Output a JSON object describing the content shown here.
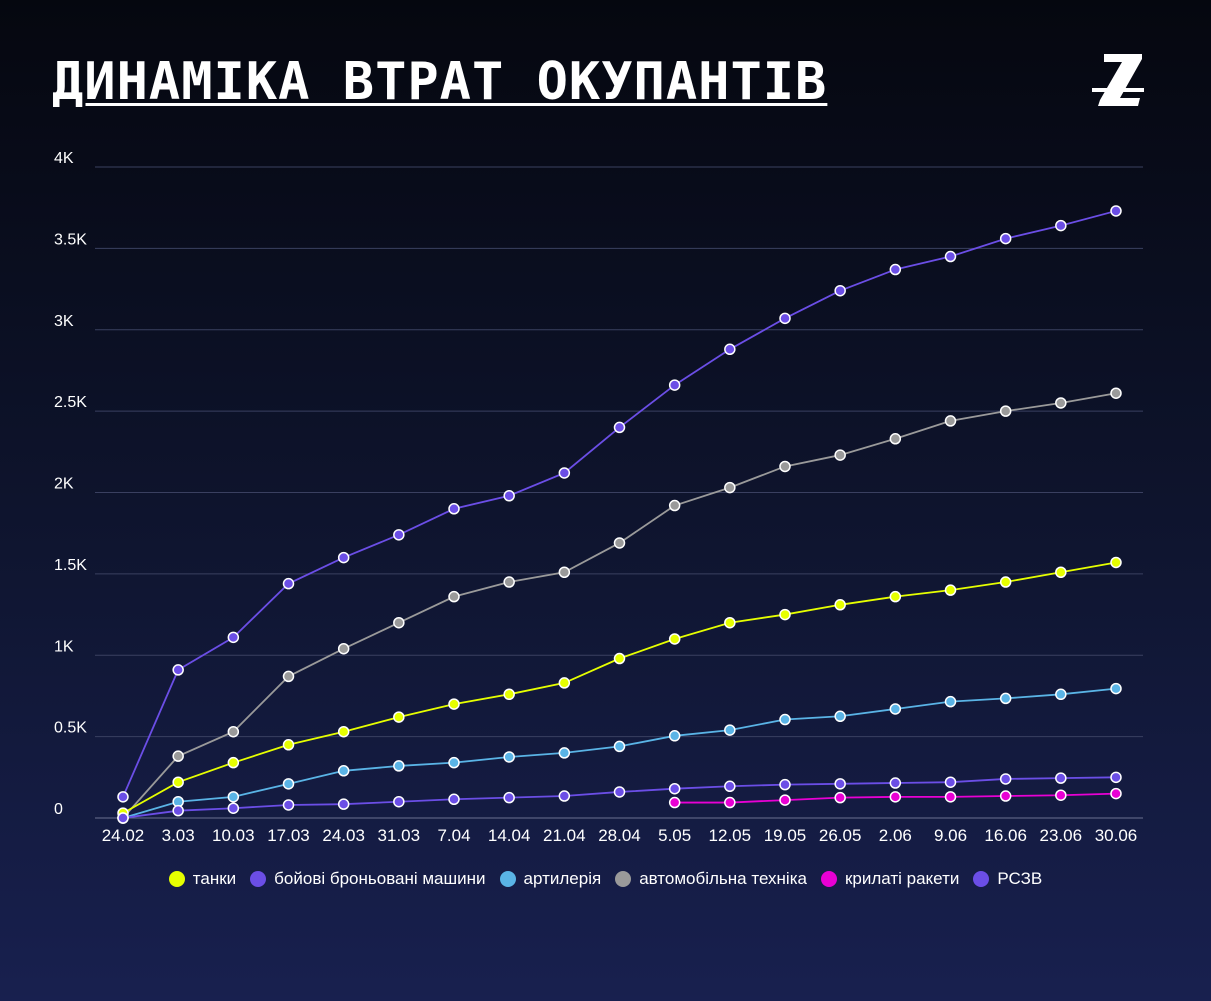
{
  "title": "ДИНАМІКА ВТРАТ ОКУПАНТІВ",
  "logo_icon": "stylized-z-logo-icon",
  "chart_data": {
    "type": "line",
    "title": "ДИНАМІКА ВТРАТ ОКУПАНТІВ",
    "xlabel": "",
    "ylabel": "",
    "ylim": [
      0,
      4000
    ],
    "yticks": [
      {
        "value": 0,
        "label": "0"
      },
      {
        "value": 500,
        "label": "0.5K"
      },
      {
        "value": 1000,
        "label": "1K"
      },
      {
        "value": 1500,
        "label": "1.5K"
      },
      {
        "value": 2000,
        "label": "2K"
      },
      {
        "value": 2500,
        "label": "2.5K"
      },
      {
        "value": 3000,
        "label": "3K"
      },
      {
        "value": 3500,
        "label": "3.5K"
      },
      {
        "value": 4000,
        "label": "4K"
      }
    ],
    "grid": true,
    "legend_position": "bottom",
    "categories": [
      "24.02",
      "3.03",
      "10.03",
      "17.03",
      "24.03",
      "31.03",
      "7.04",
      "14.04",
      "21.04",
      "28.04",
      "5.05",
      "12.05",
      "19.05",
      "26.05",
      "2.06",
      "9.06",
      "16.06",
      "23.06",
      "30.06"
    ],
    "series": [
      {
        "name": "танки",
        "color": "#e6ff00",
        "values": [
          30,
          220,
          340,
          450,
          530,
          620,
          700,
          760,
          830,
          980,
          1100,
          1200,
          1250,
          1310,
          1360,
          1400,
          1450,
          1510,
          1570
        ]
      },
      {
        "name": "бойові броньовані машини",
        "color": "#6b4ee6",
        "values": [
          130,
          910,
          1110,
          1440,
          1600,
          1740,
          1900,
          1980,
          2120,
          2400,
          2660,
          2880,
          3070,
          3240,
          3370,
          3450,
          3560,
          3640,
          3730
        ]
      },
      {
        "name": "артилерія",
        "color": "#5ab4e6",
        "values": [
          0,
          100,
          130,
          210,
          290,
          320,
          340,
          375,
          400,
          440,
          505,
          540,
          605,
          625,
          670,
          715,
          735,
          760,
          795
        ]
      },
      {
        "name": "автомобільна техніка",
        "color": "#9a9a9a",
        "values": [
          0,
          380,
          530,
          870,
          1040,
          1200,
          1360,
          1450,
          1510,
          1690,
          1920,
          2030,
          2160,
          2230,
          2330,
          2440,
          2500,
          2550,
          2610
        ]
      },
      {
        "name": "крилаті ракети",
        "color": "#e800d4",
        "values": [
          null,
          null,
          null,
          null,
          null,
          null,
          null,
          null,
          null,
          null,
          95,
          95,
          110,
          125,
          130,
          130,
          135,
          140,
          150
        ]
      },
      {
        "name": "РСЗВ",
        "color": "#6b4ee6",
        "values": [
          0,
          45,
          60,
          80,
          85,
          100,
          115,
          125,
          135,
          160,
          180,
          195,
          205,
          210,
          215,
          220,
          240,
          245,
          250
        ]
      }
    ]
  }
}
